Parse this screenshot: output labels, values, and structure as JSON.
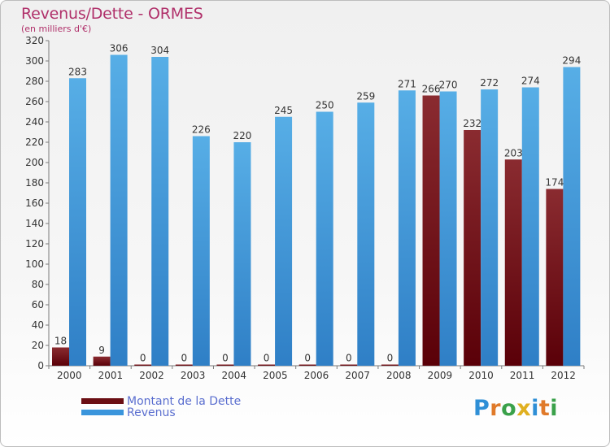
{
  "title": "Revenus/Dette - ORMES",
  "subtitle": "(en milliers d'€)",
  "logo": {
    "letters": [
      {
        "ch": "P",
        "color": "#2f8fd6"
      },
      {
        "ch": "r",
        "color": "#e07a2a"
      },
      {
        "ch": "o",
        "color": "#3aa14a"
      },
      {
        "ch": "x",
        "color": "#e0b020"
      },
      {
        "ch": "i",
        "color": "#2f8fd6"
      },
      {
        "ch": "t",
        "color": "#e07a2a"
      },
      {
        "ch": "i",
        "color": "#3aa14a"
      }
    ]
  },
  "legend": [
    {
      "label": "Montant de la Dette",
      "color": "#6b0f14"
    },
    {
      "label": "Revenus",
      "color": "#3a95dc"
    }
  ],
  "chart_data": {
    "type": "bar",
    "categories": [
      "2000",
      "2001",
      "2002",
      "2003",
      "2004",
      "2005",
      "2006",
      "2007",
      "2008",
      "2009",
      "2010",
      "2011",
      "2012"
    ],
    "series": [
      {
        "name": "Montant de la Dette",
        "color": "#6b0f14",
        "values": [
          18,
          9,
          0,
          0,
          0,
          0,
          0,
          0,
          0,
          266,
          232,
          203,
          174
        ]
      },
      {
        "name": "Revenus",
        "color": "#3a95dc",
        "values": [
          283,
          306,
          304,
          226,
          220,
          245,
          250,
          259,
          271,
          270,
          272,
          274,
          294
        ]
      }
    ],
    "ylim": [
      0,
      320
    ],
    "yticks": [
      0,
      20,
      40,
      60,
      80,
      100,
      120,
      140,
      160,
      180,
      200,
      220,
      240,
      260,
      280,
      300,
      320
    ],
    "grid": false,
    "legend_position": "bottom-left"
  }
}
